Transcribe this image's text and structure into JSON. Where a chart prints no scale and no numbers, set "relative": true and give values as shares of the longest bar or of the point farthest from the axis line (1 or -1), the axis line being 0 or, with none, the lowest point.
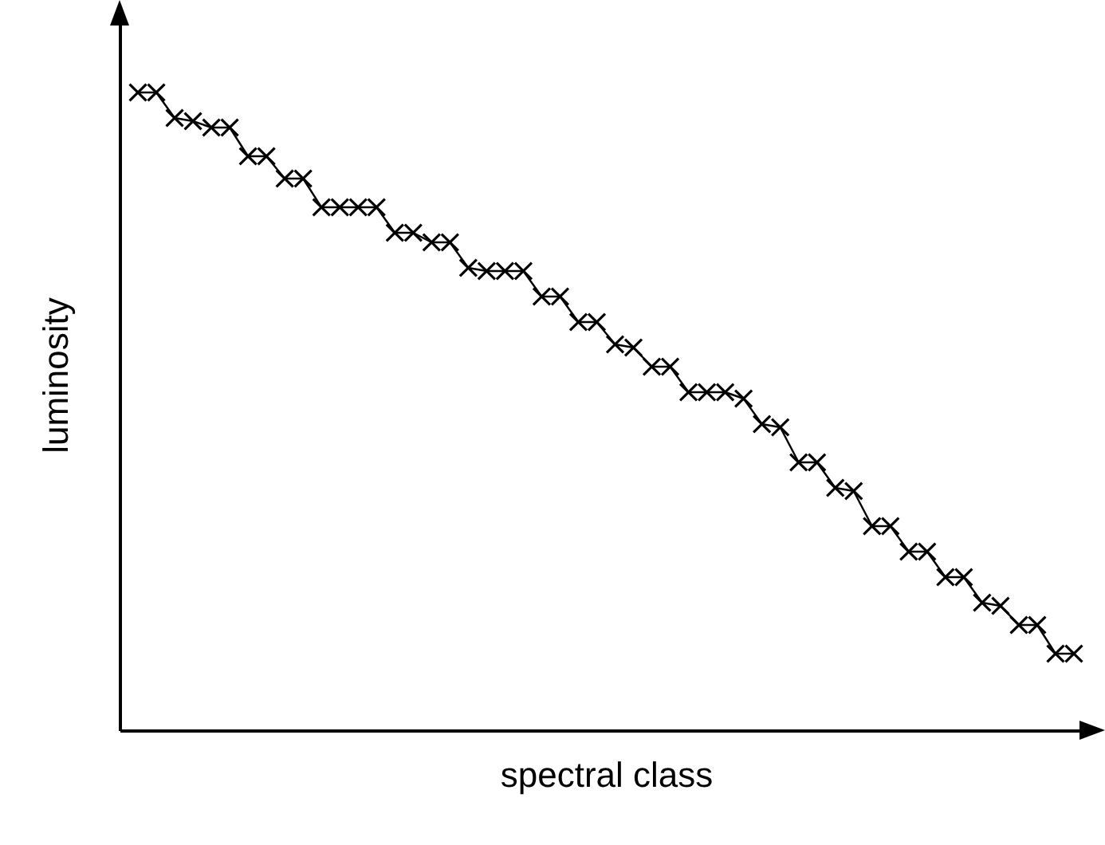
{
  "chart_data": {
    "type": "line",
    "xlabel": "spectral class",
    "ylabel": "luminosity",
    "relative": true,
    "tick_labels": false,
    "marker": "cross",
    "categories": [
      null,
      null,
      null,
      null,
      null,
      null,
      null,
      null,
      null,
      null,
      null,
      null,
      null,
      null,
      null,
      null,
      null,
      null,
      null,
      null,
      null,
      null,
      null,
      null,
      null,
      null,
      null,
      null,
      null,
      null,
      null,
      null,
      null,
      null,
      null,
      null,
      null,
      null,
      null,
      null,
      null,
      null,
      null,
      null,
      null,
      null,
      null,
      null,
      null,
      null,
      null,
      null
    ],
    "series": [
      {
        "color": "#000000",
        "values": [
          1.0,
          1.0,
          0.96,
          0.955,
          0.945,
          0.945,
          0.9,
          0.9,
          0.865,
          0.865,
          0.82,
          0.82,
          0.82,
          0.82,
          0.78,
          0.78,
          0.765,
          0.765,
          0.725,
          0.72,
          0.72,
          0.72,
          0.68,
          0.68,
          0.64,
          0.64,
          0.605,
          0.6,
          0.57,
          0.57,
          0.53,
          0.53,
          0.53,
          0.52,
          0.48,
          0.475,
          0.42,
          0.42,
          0.38,
          0.375,
          0.32,
          0.32,
          0.28,
          0.28,
          0.24,
          0.24,
          0.2,
          0.195,
          0.165,
          0.165,
          0.12,
          0.12
        ]
      }
    ]
  }
}
